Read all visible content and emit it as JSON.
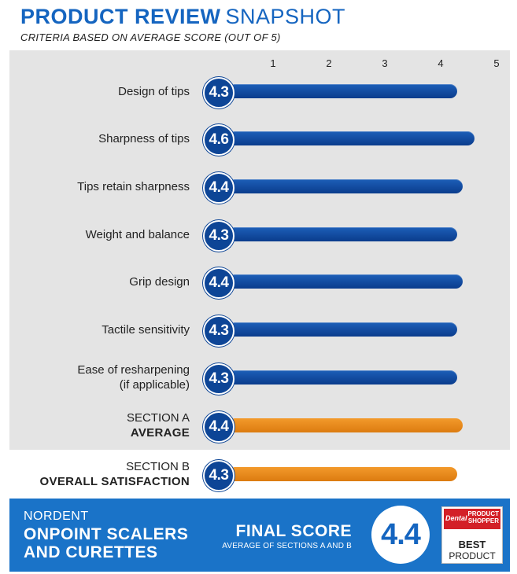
{
  "header": {
    "title_bold": "PRODUCT REVIEW",
    "title_light": "SNAPSHOT",
    "subtitle": "CRITERIA BASED ON AVERAGE SCORE (OUT OF 5)"
  },
  "chart_data": {
    "type": "bar",
    "orientation": "horizontal",
    "xlim": [
      0,
      5
    ],
    "ticks": [
      "1",
      "2",
      "3",
      "4",
      "5"
    ],
    "rows": [
      {
        "lines": [
          "Design of tips"
        ],
        "value": 4.3,
        "label": "4.3",
        "color": "blue"
      },
      {
        "lines": [
          "Sharpness of tips"
        ],
        "value": 4.6,
        "label": "4.6",
        "color": "blue"
      },
      {
        "lines": [
          "Tips retain sharpness"
        ],
        "value": 4.4,
        "label": "4.4",
        "color": "blue"
      },
      {
        "lines": [
          "Weight and balance"
        ],
        "value": 4.3,
        "label": "4.3",
        "color": "blue"
      },
      {
        "lines": [
          "Grip design"
        ],
        "value": 4.4,
        "label": "4.4",
        "color": "blue"
      },
      {
        "lines": [
          "Tactile sensitivity"
        ],
        "value": 4.3,
        "label": "4.3",
        "color": "blue"
      },
      {
        "lines": [
          "Ease of resharpening",
          "(if applicable)"
        ],
        "value": 4.3,
        "label": "4.3",
        "color": "blue"
      },
      {
        "lines": [
          "SECTION A",
          "AVERAGE"
        ],
        "value": 4.4,
        "label": "4.4",
        "color": "orange"
      },
      {
        "lines": [
          "SECTION B",
          "OVERALL SATISFACTION"
        ],
        "value": 4.3,
        "label": "4.3",
        "color": "orange"
      }
    ]
  },
  "footer": {
    "brand": "NORDENT",
    "product_line1": "ONPOINT SCALERS",
    "product_line2": "AND CURETTES",
    "final_label": "FINAL SCORE",
    "final_sub": "AVERAGE OF SECTIONS A AND B",
    "final_score": "4.4",
    "award": {
      "dental": "Dental",
      "ps_line1": "PRODUCT",
      "ps_line2": "SHOPPER",
      "best": "BEST",
      "product": "PRODUCT"
    }
  },
  "colors": {
    "accent_blue": "#1565c0",
    "bar_blue": "#0b3c8c",
    "bar_orange": "#e8891c",
    "panel_gray": "#e4e4e4",
    "footer_blue": "#1a73c8"
  }
}
